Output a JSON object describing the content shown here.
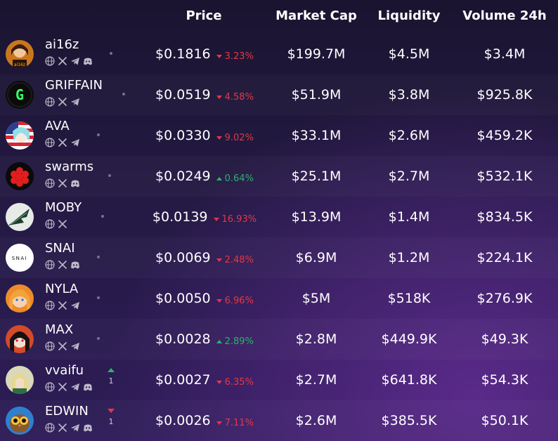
{
  "columns": {
    "price": "Price",
    "market_cap": "Market Cap",
    "liquidity": "Liquidity",
    "volume": "Volume 24h"
  },
  "colors": {
    "negative": "#e23846",
    "positive": "#2bb36b"
  },
  "rows": [
    {
      "name": "ai16z",
      "socials": [
        "globe-icon",
        "x-icon",
        "telegram-icon",
        "discord-icon"
      ],
      "price": "$0.1816",
      "change": "3.23%",
      "dir": "down",
      "market_cap": "$199.7M",
      "liquidity": "$4.5M",
      "volume": "$3.4M",
      "trend": null,
      "avatar": "ai16z-avatar"
    },
    {
      "name": "GRIFFAIN",
      "socials": [
        "globe-icon",
        "x-icon",
        "telegram-icon"
      ],
      "price": "$0.0519",
      "change": "4.58%",
      "dir": "down",
      "market_cap": "$51.9M",
      "liquidity": "$3.8M",
      "volume": "$925.8K",
      "trend": null,
      "avatar": "griffain-avatar"
    },
    {
      "name": "AVA",
      "socials": [
        "globe-icon",
        "x-icon",
        "telegram-icon"
      ],
      "price": "$0.0330",
      "change": "9.02%",
      "dir": "down",
      "market_cap": "$33.1M",
      "liquidity": "$2.6M",
      "volume": "$459.2K",
      "trend": null,
      "avatar": "ava-avatar"
    },
    {
      "name": "swarms",
      "socials": [
        "globe-icon",
        "x-icon",
        "discord-icon"
      ],
      "price": "$0.0249",
      "change": "0.64%",
      "dir": "up",
      "market_cap": "$25.1M",
      "liquidity": "$2.7M",
      "volume": "$532.1K",
      "trend": null,
      "avatar": "swarms-avatar"
    },
    {
      "name": "MOBY",
      "socials": [
        "globe-icon",
        "x-icon"
      ],
      "price": "$0.0139",
      "change": "16.93%",
      "dir": "down",
      "market_cap": "$13.9M",
      "liquidity": "$1.4M",
      "volume": "$834.5K",
      "trend": null,
      "avatar": "moby-avatar"
    },
    {
      "name": "SNAI",
      "socials": [
        "globe-icon",
        "x-icon",
        "discord-icon"
      ],
      "price": "$0.0069",
      "change": "2.48%",
      "dir": "down",
      "market_cap": "$6.9M",
      "liquidity": "$1.2M",
      "volume": "$224.1K",
      "trend": null,
      "avatar": "snai-avatar",
      "avatar_text": "SNAI"
    },
    {
      "name": "NYLA",
      "socials": [
        "globe-icon",
        "x-icon",
        "telegram-icon"
      ],
      "price": "$0.0050",
      "change": "6.96%",
      "dir": "down",
      "market_cap": "$5M",
      "liquidity": "$518K",
      "volume": "$276.9K",
      "trend": null,
      "avatar": "nyla-avatar"
    },
    {
      "name": "MAX",
      "socials": [
        "globe-icon",
        "x-icon",
        "telegram-icon"
      ],
      "price": "$0.0028",
      "change": "2.89%",
      "dir": "up",
      "market_cap": "$2.8M",
      "liquidity": "$449.9K",
      "volume": "$49.3K",
      "trend": null,
      "avatar": "max-avatar"
    },
    {
      "name": "vvaifu",
      "socials": [
        "globe-icon",
        "x-icon",
        "telegram-icon",
        "discord-icon"
      ],
      "price": "$0.0027",
      "change": "6.35%",
      "dir": "down",
      "market_cap": "$2.7M",
      "liquidity": "$641.8K",
      "volume": "$54.3K",
      "trend": {
        "dir": "up",
        "count": "1"
      },
      "avatar": "vvaifu-avatar"
    },
    {
      "name": "EDWIN",
      "socials": [
        "globe-icon",
        "x-icon",
        "telegram-icon",
        "discord-icon"
      ],
      "price": "$0.0026",
      "change": "7.11%",
      "dir": "down",
      "market_cap": "$2.6M",
      "liquidity": "$385.5K",
      "volume": "$50.1K",
      "trend": {
        "dir": "down",
        "count": "1"
      },
      "avatar": "edwin-avatar"
    }
  ]
}
